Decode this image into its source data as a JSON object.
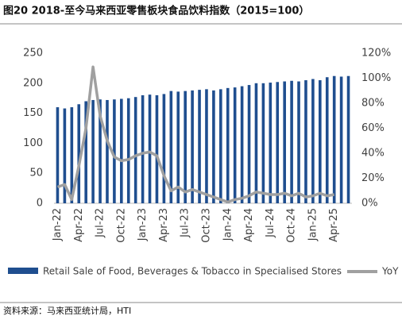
{
  "chart_data": {
    "type": "bar-line",
    "title": "图20 2018-至今马来西亚零售板块食品饮料指数（2015=100）",
    "source": "资料来源：马来西亚统计局，HTI",
    "categories": [
      "Jan-22",
      null,
      null,
      "Apr-22",
      null,
      null,
      "Jul-22",
      null,
      null,
      "Oct-22",
      null,
      null,
      "Jan-23",
      null,
      null,
      "Apr-23",
      null,
      null,
      "Jul-23",
      null,
      null,
      "Oct-23",
      null,
      null,
      "Jan-24",
      null,
      null,
      "Apr-24",
      null,
      null,
      "Jul-24",
      null,
      null,
      "Oct-24",
      null,
      null,
      "Jan-25",
      null,
      null,
      "Apr-25",
      null,
      null
    ],
    "series": [
      {
        "name": "Retail Sale of Food, Beverages & Tobacco in Specialised Stores",
        "color": "#1f4e8f",
        "kind": "bar",
        "values": [
          160,
          158,
          160,
          165,
          170,
          172,
          173,
          172,
          173,
          174,
          175,
          177,
          180,
          181,
          180,
          182,
          187,
          186,
          187,
          188,
          189,
          190,
          188,
          190,
          192,
          193,
          195,
          197,
          200,
          200,
          201,
          202,
          203,
          204,
          203,
          205,
          207,
          205,
          210,
          212,
          211,
          212
        ]
      },
      {
        "name": "YoY",
        "color": "#a0a0a0",
        "kind": "line",
        "axis": "y2",
        "values": [
          13,
          15,
          3,
          30,
          60,
          109,
          70,
          50,
          37,
          34,
          35,
          38,
          40,
          41,
          38,
          22,
          10,
          13,
          9,
          11,
          9,
          7,
          5,
          3,
          1,
          3,
          4,
          6,
          9,
          8,
          7,
          7,
          8,
          6,
          8,
          5,
          6,
          8,
          6,
          7,
          null,
          null
        ]
      }
    ],
    "ylim": [
      0,
      250
    ],
    "yticks": [
      0,
      50,
      100,
      150,
      200,
      250
    ],
    "y2lim": [
      0,
      120
    ],
    "y2ticks": [
      {
        "value": 0,
        "label": "0%"
      },
      {
        "value": 20,
        "label": "20%"
      },
      {
        "value": 40,
        "label": "40%"
      },
      {
        "value": 60,
        "label": "60%"
      },
      {
        "value": 80,
        "label": "80%"
      },
      {
        "value": 100,
        "label": "100%"
      },
      {
        "value": 120,
        "label": "120%"
      }
    ]
  }
}
